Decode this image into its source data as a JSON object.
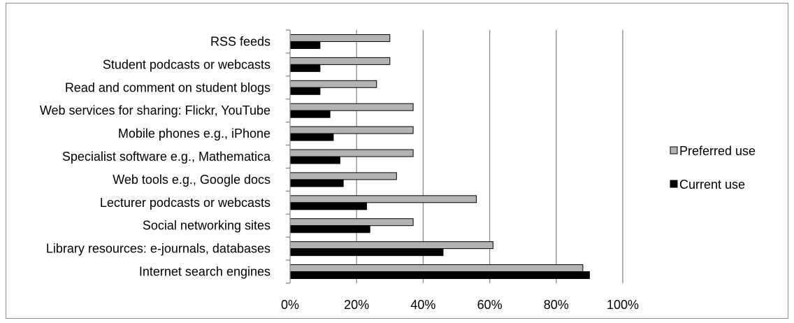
{
  "chart_data": {
    "type": "bar",
    "orientation": "horizontal",
    "title": "",
    "xlabel": "",
    "ylabel": "",
    "xlim": [
      0,
      100
    ],
    "x_ticks": [
      "0%",
      "20%",
      "40%",
      "60%",
      "80%",
      "100%"
    ],
    "grid": "vertical",
    "legend_position": "right",
    "categories": [
      "RSS feeds",
      "Student podcasts or webcasts",
      "Read and comment on student blogs",
      "Web services for sharing: Flickr, YouTube",
      "Mobile phones e.g., iPhone",
      "Specialist software e.g., Mathematica",
      "Web tools e.g., Google docs",
      "Lecturer podcasts or webcasts",
      "Social networking sites",
      "Library resources: e-journals, databases",
      "Internet search engines"
    ],
    "series": [
      {
        "name": "Preferred use",
        "color": "#b3b3b3",
        "values": [
          30,
          30,
          26,
          37,
          37,
          37,
          32,
          56,
          37,
          61,
          88
        ]
      },
      {
        "name": "Current use",
        "color": "#000000",
        "values": [
          9,
          9,
          9,
          12,
          13,
          15,
          16,
          23,
          24,
          46,
          90
        ]
      }
    ]
  }
}
